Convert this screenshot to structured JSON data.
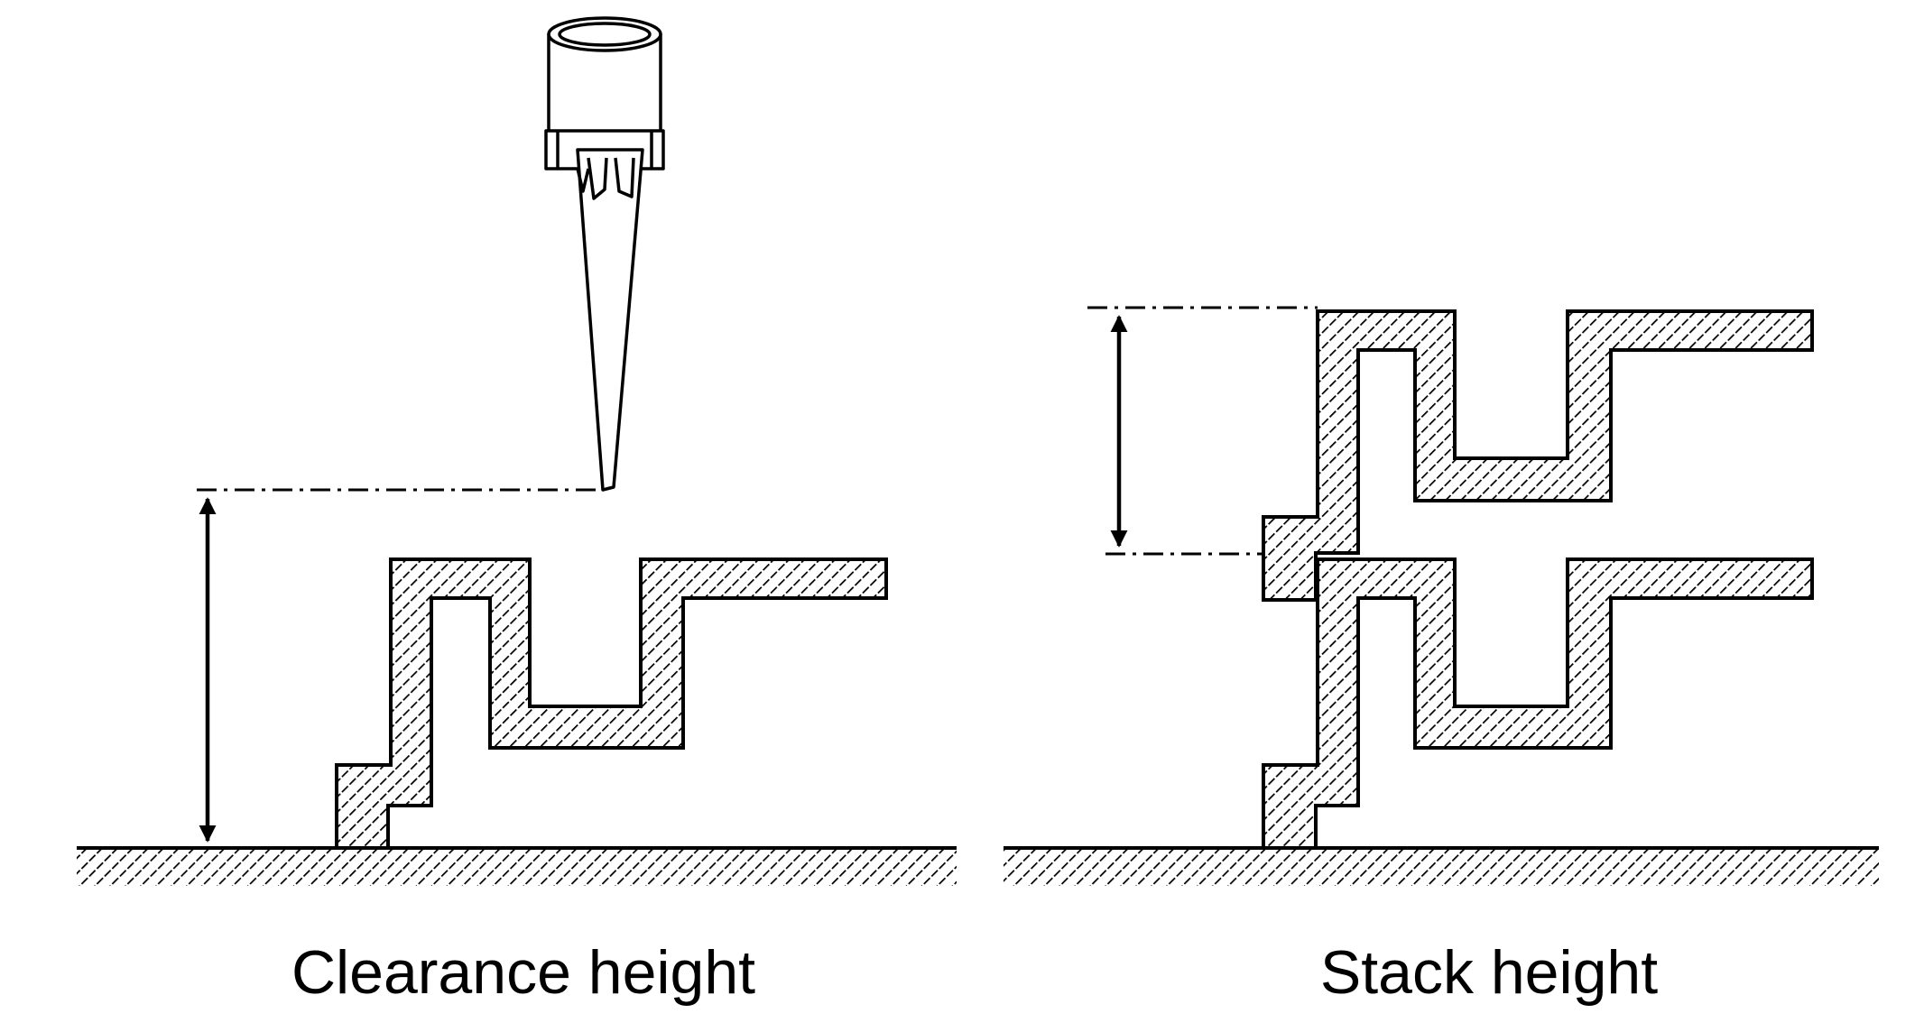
{
  "panels": [
    {
      "caption": "Clearance height"
    },
    {
      "caption": "Stack height"
    }
  ],
  "colors": {
    "stroke": "#000000",
    "hatch": "#000000",
    "background": "#ffffff"
  }
}
